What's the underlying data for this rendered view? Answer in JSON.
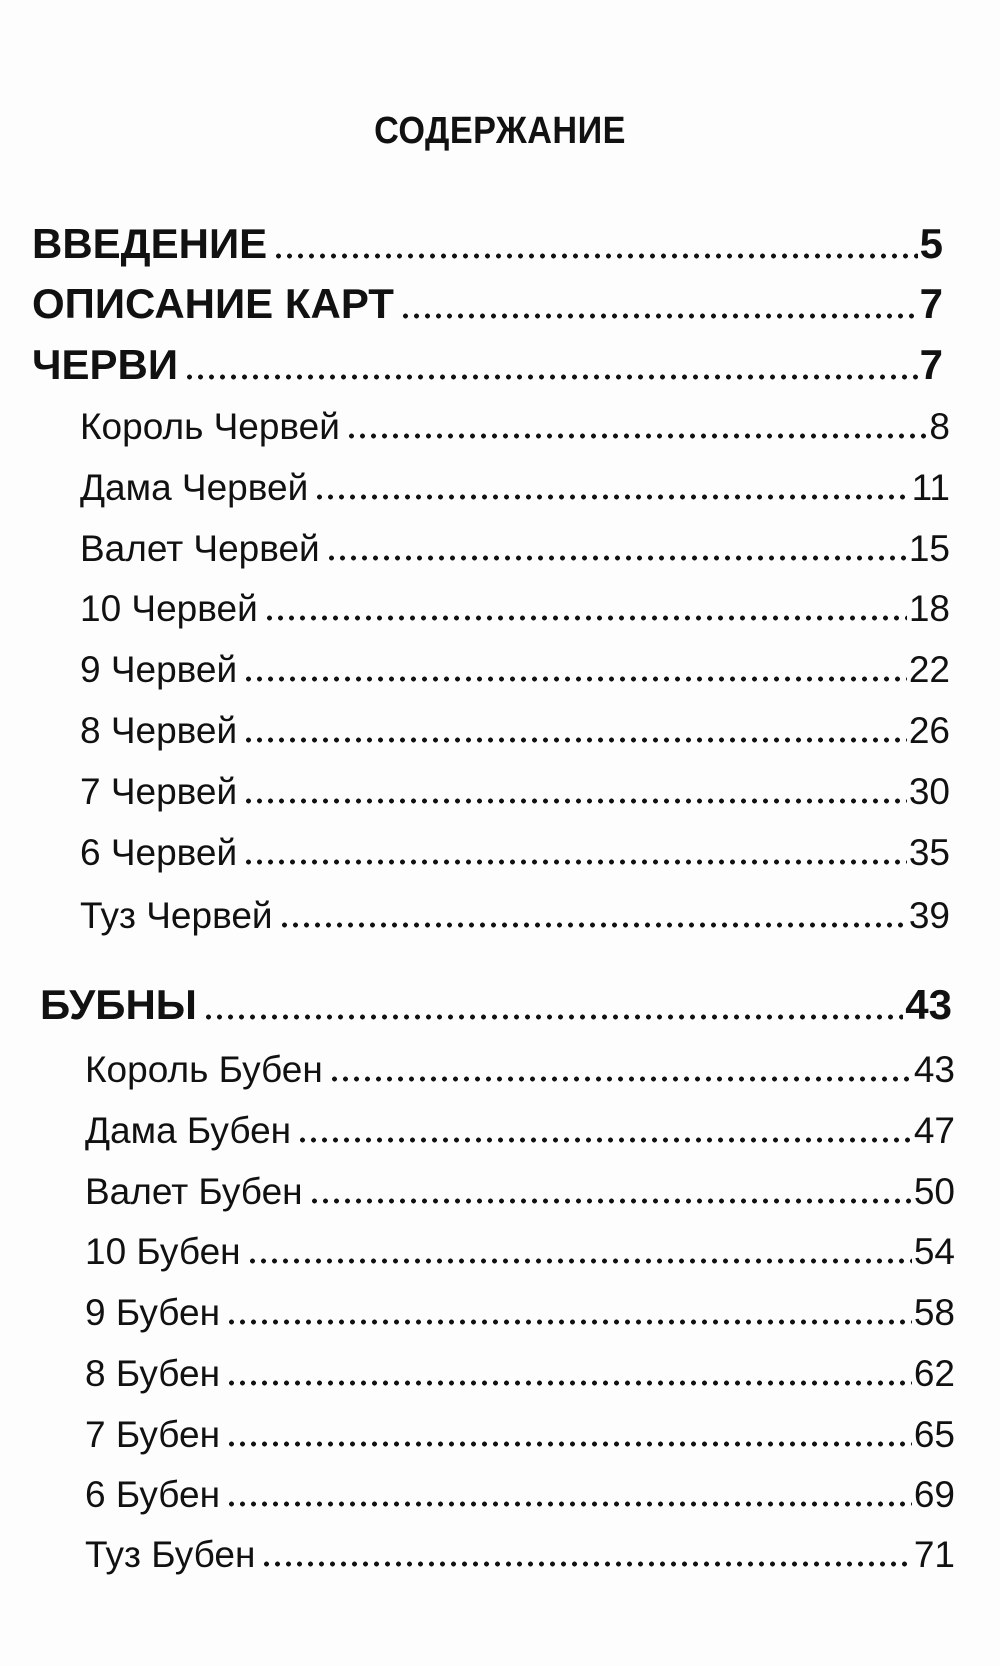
{
  "title": "СОДЕРЖАНИЕ",
  "sections": [
    {
      "label": "ВВЕДЕНИЕ",
      "page": "5",
      "level": 1
    },
    {
      "label": "ОПИСАНИЕ КАРТ",
      "page": "7",
      "level": 1
    },
    {
      "label": "ЧЕРВИ",
      "page": "7",
      "level": 1
    },
    {
      "label": "Король Червей",
      "page": "8",
      "level": 2
    },
    {
      "label": "Дама Червей",
      "page": "11",
      "level": 2
    },
    {
      "label": "Валет Червей",
      "page": "15",
      "level": 2
    },
    {
      "label": "10 Червей",
      "page": "18",
      "level": 2
    },
    {
      "label": "9 Червей",
      "page": "22",
      "level": 2
    },
    {
      "label": "8 Червей",
      "page": "26",
      "level": 2
    },
    {
      "label": "7 Червей",
      "page": "30",
      "level": 2
    },
    {
      "label": "6 Червей",
      "page": "35",
      "level": 2
    },
    {
      "label": "Туз Червей",
      "page": "39",
      "level": 2
    },
    {
      "label": "БУБНЫ",
      "page": "43",
      "level": 1
    },
    {
      "label": "Король Бубен",
      "page": "43",
      "level": 2
    },
    {
      "label": "Дама Бубен",
      "page": "47",
      "level": 2
    },
    {
      "label": "Валет Бубен",
      "page": "50",
      "level": 2
    },
    {
      "label": "10 Бубен",
      "page": "54",
      "level": 2
    },
    {
      "label": "9 Бубен",
      "page": "58",
      "level": 2
    },
    {
      "label": "8 Бубен",
      "page": "62",
      "level": 2
    },
    {
      "label": "7 Бубен",
      "page": "65",
      "level": 2
    },
    {
      "label": "6 Бубен",
      "page": "69",
      "level": 2
    },
    {
      "label": "Туз Бубен",
      "page": "71",
      "level": 2
    }
  ]
}
